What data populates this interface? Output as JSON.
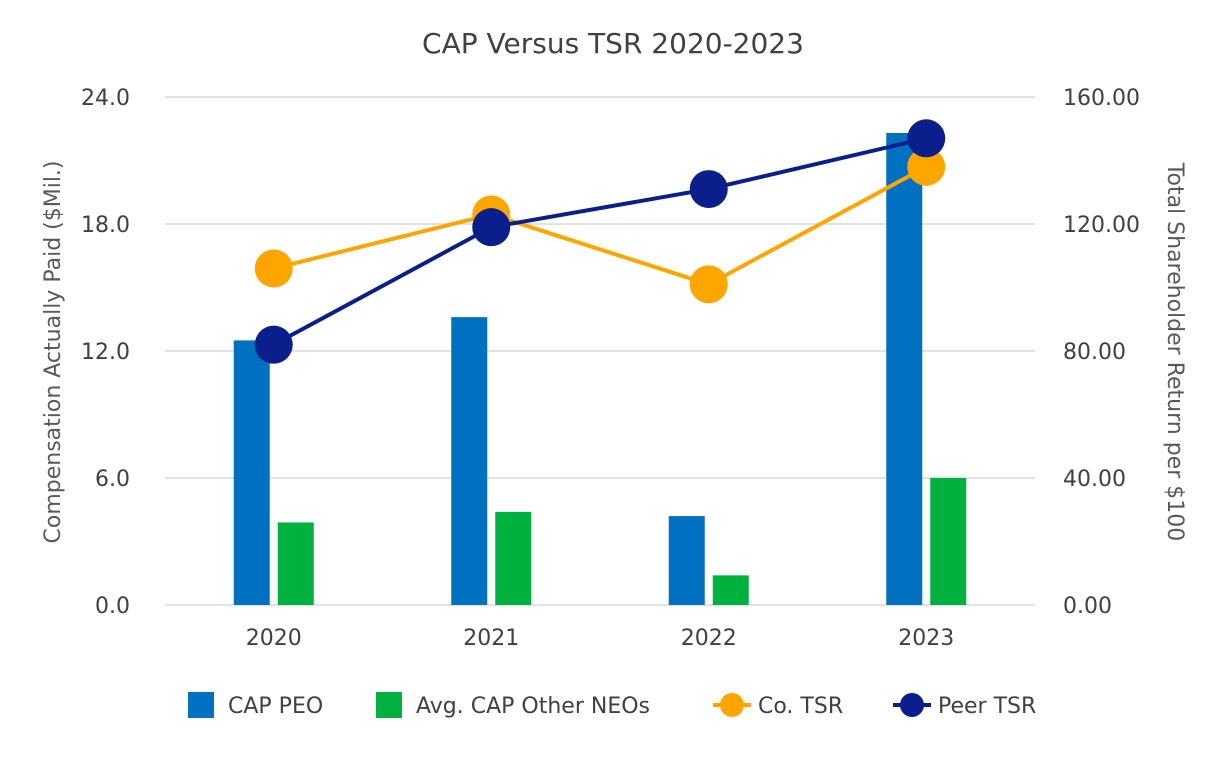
{
  "chart_data": {
    "type": "bar",
    "title": "CAP Versus TSR 2020-2023",
    "categories": [
      "2020",
      "2021",
      "2022",
      "2023"
    ],
    "y_left": {
      "label": "Compensation Actually Paid ($Mil.)",
      "lim": [
        0,
        24
      ],
      "ticks": [
        "0.0",
        "6.0",
        "12.0",
        "18.0",
        "24.0"
      ],
      "tick_values": [
        0,
        6,
        12,
        18,
        24
      ]
    },
    "y_right": {
      "label": "Total Shareholder Return per $100",
      "lim": [
        0,
        160
      ],
      "ticks": [
        "0.00",
        "40.00",
        "80.00",
        "120.00",
        "160.00"
      ],
      "tick_values": [
        0,
        40,
        80,
        120,
        160
      ]
    },
    "series": [
      {
        "name": "CAP PEO",
        "kind": "bar",
        "axis": "left",
        "color": "#0070C0",
        "values": [
          12.5,
          13.6,
          4.2,
          22.3
        ]
      },
      {
        "name": "Avg. CAP Other NEOs",
        "kind": "bar",
        "axis": "left",
        "color": "#00B140",
        "values": [
          3.9,
          4.4,
          1.4,
          6.0
        ]
      },
      {
        "name": "Co. TSR",
        "kind": "line",
        "axis": "right",
        "color": "#FFA500",
        "values": [
          106,
          123,
          101,
          138
        ]
      },
      {
        "name": "Peer TSR",
        "kind": "line",
        "axis": "right",
        "color": "#0A1E8C",
        "values": [
          82,
          119,
          131,
          147
        ]
      }
    ],
    "grid": true,
    "legend_position": "bottom"
  }
}
